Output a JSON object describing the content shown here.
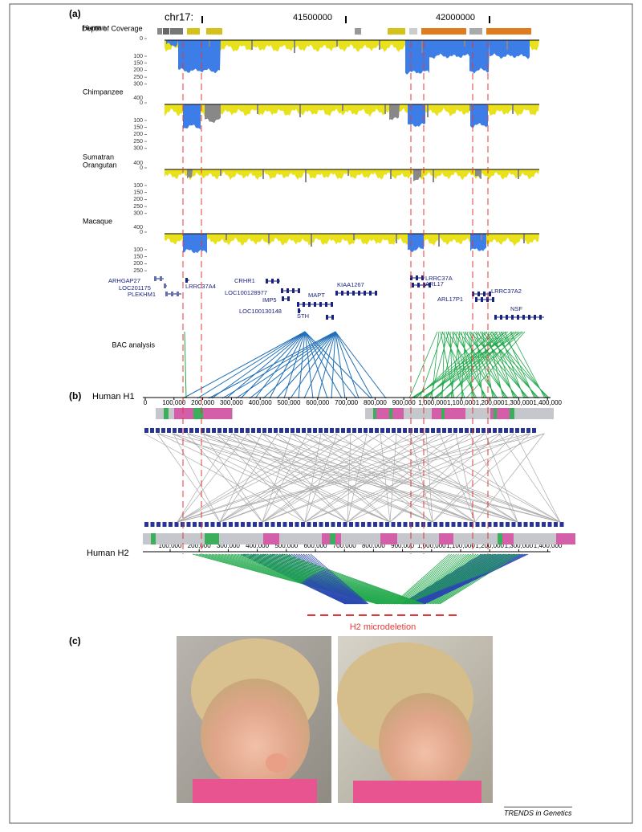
{
  "panel_a": {
    "label": "(a)",
    "chromosome": "chr17:",
    "positions": [
      "41500000",
      "42000000"
    ],
    "coverage_title": "Depth of Coverage",
    "tracks": [
      {
        "name": [
          "Human"
        ],
        "max": null,
        "scale": [
          "0",
          "100",
          "150",
          "200",
          "250",
          "300"
        ]
      },
      {
        "name": [
          "Chimpanzee"
        ],
        "max": "400",
        "scale": [
          "0",
          "100",
          "150",
          "200",
          "250",
          "300"
        ]
      },
      {
        "name": [
          "Sumatran",
          "Orangutan"
        ],
        "max": "400",
        "scale": [
          "0",
          "100",
          "150",
          "200",
          "250",
          "300"
        ]
      },
      {
        "name": [
          "Macaque"
        ],
        "max": "400",
        "scale": [
          "0",
          "100",
          "150",
          "200",
          "250"
        ]
      }
    ],
    "genes": [
      "ARHGAP27",
      "LOC201175",
      "PLEKHM1",
      "LRRC37A4",
      "CRHR1",
      "LOC100128977",
      "IMP5",
      "MAPT",
      "LOC100130148",
      "STH",
      "KIAA1267",
      "LRRC37A",
      "ARL17",
      "ARL17P1",
      "LRRC37A2",
      "NSF"
    ],
    "bac_label": "BAC analysis"
  },
  "panel_b": {
    "label": "(b)",
    "h1": {
      "name": "Human H1",
      "ticks": [
        "0",
        "100,000",
        "200,000",
        "300,000",
        "400,000",
        "500,000",
        "600,000",
        "700,000",
        "800,000",
        "900,000",
        "1,000,000",
        "1,100,000",
        "1,200,000",
        "1,300,000",
        "1,400,000"
      ]
    },
    "h2": {
      "name": "Human H2",
      "ticks": [
        "100,000",
        "200,000",
        "300,000",
        "400,000",
        "500,000",
        "600,000",
        "700,000",
        "800,000",
        "900,000",
        "1,000,000",
        "1,100,000",
        "1,200,000",
        "1,300,000",
        "1,400,000"
      ]
    },
    "deletion_label": "H2 microdeletion"
  },
  "panel_c": {
    "label": "(c)"
  },
  "footer": {
    "credit": "TRENDS in Genetics"
  }
}
